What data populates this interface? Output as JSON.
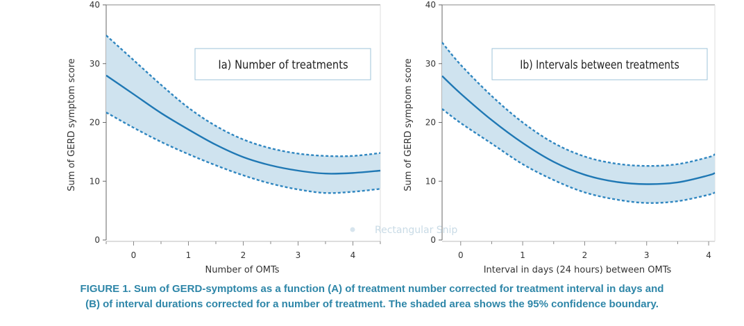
{
  "figure": {
    "caption_line1": "FIGURE 1. Sum of GERD-symptoms as a function (A) of treatment number corrected for treatment interval in days and",
    "caption_line2": "(B) of interval durations corrected for a number of treatment. The shaded area shows the 95% confidence boundary.",
    "watermark": "Rectangular Snip"
  },
  "colors": {
    "line": "#1f78b4",
    "band": "#cfe3ef",
    "dash": "#2f86c0",
    "caption": "#2e86a8"
  },
  "chart_data": [
    {
      "type": "line",
      "title": "Ia) Number of treatments",
      "xlabel": "Number of OMTs",
      "ylabel": "Sum of GERD symptom score",
      "xlim": [
        -0.5,
        4.5
      ],
      "ylim": [
        0,
        40
      ],
      "xticks": [
        0,
        1,
        2,
        3,
        4
      ],
      "yticks": [
        0,
        10,
        20,
        30,
        40
      ],
      "x": [
        -0.5,
        0,
        0.5,
        1,
        1.5,
        2,
        2.5,
        3,
        3.5,
        4,
        4.5
      ],
      "series": [
        {
          "name": "estimate",
          "values": [
            28,
            24.8,
            21.6,
            18.8,
            16.2,
            14.1,
            12.7,
            11.8,
            11.3,
            11.4,
            11.8
          ]
        },
        {
          "name": "upper 95% CI",
          "values": [
            34.8,
            30.6,
            26.4,
            22.5,
            19.4,
            17.1,
            15.6,
            14.7,
            14.3,
            14.3,
            14.8
          ]
        },
        {
          "name": "lower 95% CI",
          "values": [
            21.7,
            19.1,
            16.7,
            14.6,
            12.7,
            11.0,
            9.6,
            8.6,
            8.0,
            8.2,
            8.7
          ]
        }
      ]
    },
    {
      "type": "line",
      "title": "Ib) Intervals between treatments",
      "xlabel": "Interval in days (24 hours) between OMTs",
      "ylabel": "Sum of GERD symptom score",
      "xlim": [
        -0.3,
        4.1
      ],
      "ylim": [
        0,
        40
      ],
      "xticks": [
        0,
        1,
        2,
        3,
        4
      ],
      "yticks": [
        0,
        10,
        20,
        30,
        40
      ],
      "x": [
        -0.3,
        0,
        0.5,
        1,
        1.5,
        2,
        2.5,
        3,
        3.5,
        4,
        4.1
      ],
      "series": [
        {
          "name": "estimate",
          "values": [
            27.9,
            24.9,
            20.4,
            16.5,
            13.3,
            11.1,
            9.9,
            9.5,
            9.8,
            11.0,
            11.4
          ]
        },
        {
          "name": "upper 95% CI",
          "values": [
            33.6,
            29.8,
            24.5,
            20.0,
            16.5,
            14.2,
            13.0,
            12.6,
            12.9,
            14.1,
            14.6
          ]
        },
        {
          "name": "lower 95% CI",
          "values": [
            22.3,
            19.9,
            16.4,
            12.9,
            10.2,
            8.1,
            6.9,
            6.3,
            6.6,
            7.7,
            8.1
          ]
        }
      ]
    }
  ]
}
